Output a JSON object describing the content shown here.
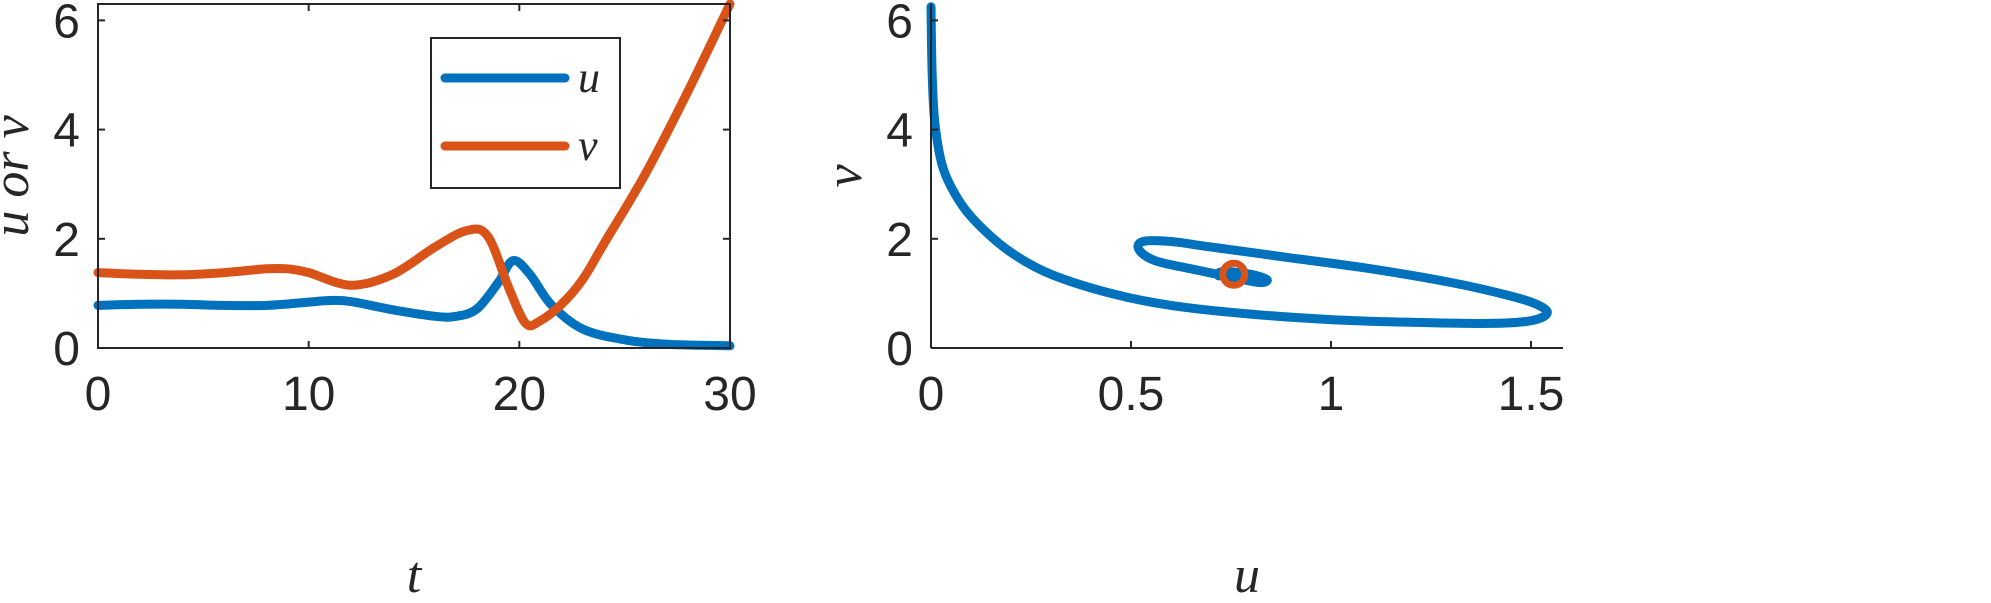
{
  "colors": {
    "u": "#0072BD",
    "v": "#D95319",
    "axis": "#262626"
  },
  "chart_data": [
    {
      "type": "line",
      "title": "",
      "xlabel": "t",
      "ylabel": "u or v",
      "xlim": [
        0,
        30
      ],
      "ylim": [
        0,
        6.3
      ],
      "xticks": [
        0,
        10,
        20,
        30
      ],
      "yticks": [
        0,
        2,
        4,
        6
      ],
      "legend": {
        "placement": "top-center",
        "entries": [
          "u",
          "v"
        ]
      },
      "series": [
        {
          "name": "u",
          "color": "#0072BD",
          "x": [
            0,
            2,
            4,
            6,
            8,
            10,
            11,
            12,
            14,
            16,
            17,
            18,
            19,
            19.7,
            20.5,
            21.5,
            23,
            25,
            27,
            30
          ],
          "y": [
            0.78,
            0.8,
            0.8,
            0.78,
            0.78,
            0.84,
            0.87,
            0.85,
            0.7,
            0.58,
            0.58,
            0.72,
            1.2,
            1.6,
            1.35,
            0.8,
            0.35,
            0.15,
            0.07,
            0.04
          ]
        },
        {
          "name": "v",
          "color": "#D95319",
          "x": [
            0,
            2,
            4,
            6,
            8,
            9,
            10,
            12,
            14,
            16,
            17.5,
            18.5,
            19.5,
            20.3,
            21,
            22,
            23,
            24,
            26,
            28,
            30
          ],
          "y": [
            1.38,
            1.35,
            1.34,
            1.38,
            1.45,
            1.45,
            1.38,
            1.15,
            1.35,
            1.85,
            2.15,
            2.05,
            1.1,
            0.45,
            0.5,
            0.8,
            1.25,
            1.9,
            3.2,
            4.7,
            6.3
          ]
        }
      ]
    },
    {
      "type": "line",
      "title": "",
      "xlabel": "u",
      "ylabel": "v",
      "xlim": [
        0,
        1.58
      ],
      "ylim": [
        0,
        6.3
      ],
      "xticks": [
        0,
        0.5,
        1,
        1.5
      ],
      "xtick_labels": [
        "0",
        "0.5",
        "1",
        "1.5"
      ],
      "yticks": [
        0,
        2,
        4,
        6
      ],
      "series": [
        {
          "name": "",
          "color": "#0072BD",
          "x": [
            0.0,
            0.003,
            0.01,
            0.03,
            0.07,
            0.12,
            0.2,
            0.3,
            0.45,
            0.6,
            0.8,
            1.0,
            1.2,
            1.4,
            1.5,
            1.54,
            1.52,
            1.45,
            1.3,
            1.1,
            0.9,
            0.7,
            0.6,
            0.53,
            0.52,
            0.56,
            0.65,
            0.75,
            0.82,
            0.84,
            0.8,
            0.73,
            0.72,
            0.76
          ],
          "y": [
            6.25,
            5.0,
            4.1,
            3.3,
            2.7,
            2.25,
            1.75,
            1.35,
            1.0,
            0.78,
            0.62,
            0.52,
            0.47,
            0.45,
            0.5,
            0.63,
            0.78,
            0.95,
            1.2,
            1.45,
            1.65,
            1.85,
            1.95,
            1.95,
            1.8,
            1.6,
            1.45,
            1.3,
            1.2,
            1.25,
            1.35,
            1.4,
            1.32,
            1.35
          ]
        }
      ],
      "markers": [
        {
          "x": 0.757,
          "y": 1.35,
          "color": "#D95319",
          "inner": "#0072BD"
        }
      ]
    }
  ]
}
